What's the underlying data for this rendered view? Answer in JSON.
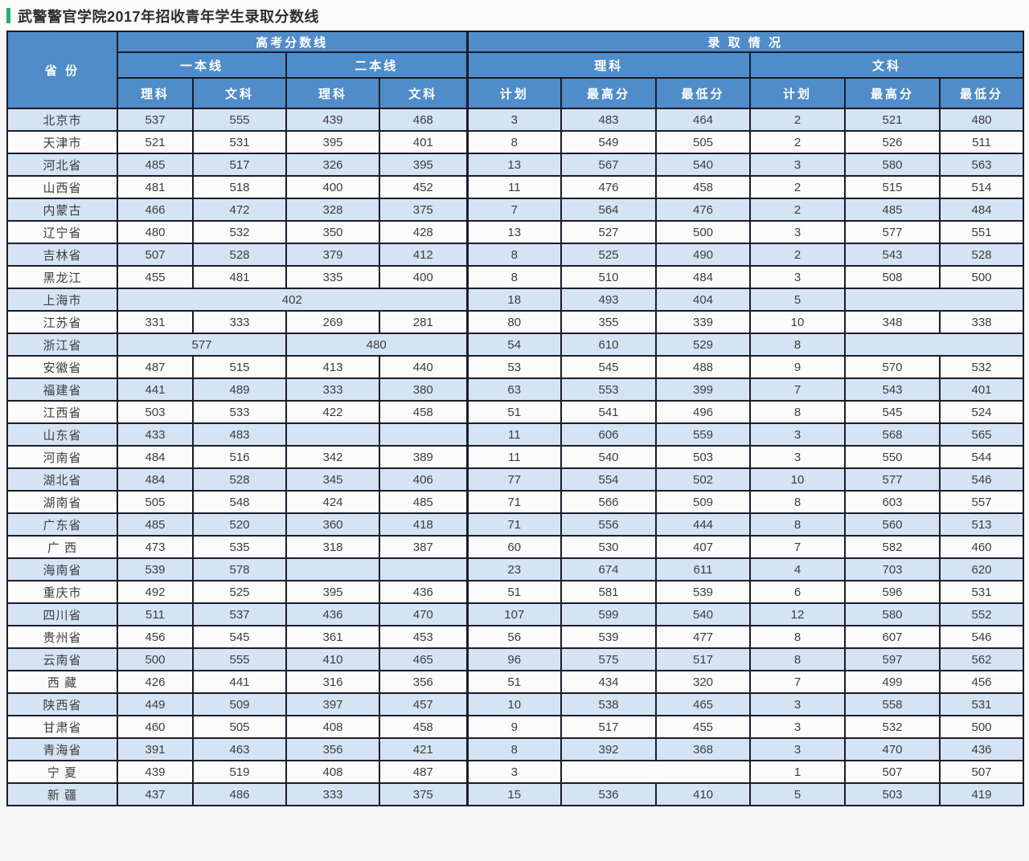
{
  "page": {
    "title": "武警警官学院2017年招收青年学生录取分数线"
  },
  "colors": {
    "accent_green": "#27b06a",
    "header_bg": "#4f8cc9",
    "row_alt_bg": "#d4e4f4",
    "row_bg": "#fbfbfb",
    "border": "#1b1b29"
  },
  "table": {
    "header": {
      "province": "省  份",
      "gaokao_lines": "高考分数线",
      "admission": "录 取 情 况",
      "first_tier": "一本线",
      "second_tier": "二本线",
      "science": "理科",
      "arts": "文科",
      "plan": "计划",
      "max_score": "最高分",
      "min_score": "最低分"
    },
    "rows": [
      {
        "province": "北京市",
        "cells": [
          "537",
          "555",
          "439",
          "468",
          "3",
          "483",
          "464",
          "2",
          "521",
          "480"
        ]
      },
      {
        "province": "天津市",
        "cells": [
          "521",
          "531",
          "395",
          "401",
          "8",
          "549",
          "505",
          "2",
          "526",
          "511"
        ]
      },
      {
        "province": "河北省",
        "cells": [
          "485",
          "517",
          "326",
          "395",
          "13",
          "567",
          "540",
          "3",
          "580",
          "563"
        ]
      },
      {
        "province": "山西省",
        "cells": [
          "481",
          "518",
          "400",
          "452",
          "11",
          "476",
          "458",
          "2",
          "515",
          "514"
        ]
      },
      {
        "province": "内蒙古",
        "cells": [
          "466",
          "472",
          "328",
          "375",
          "7",
          "564",
          "476",
          "2",
          "485",
          "484"
        ]
      },
      {
        "province": "辽宁省",
        "cells": [
          "480",
          "532",
          "350",
          "428",
          "13",
          "527",
          "500",
          "3",
          "577",
          "551"
        ]
      },
      {
        "province": "吉林省",
        "cells": [
          "507",
          "528",
          "379",
          "412",
          "8",
          "525",
          "490",
          "2",
          "543",
          "528"
        ]
      },
      {
        "province": "黑龙江",
        "cells": [
          "455",
          "481",
          "335",
          "400",
          "8",
          "510",
          "484",
          "3",
          "508",
          "500"
        ]
      },
      {
        "province": "上海市",
        "cells": [
          {
            "t": "402",
            "s": 4
          },
          "18",
          "493",
          "404",
          "5",
          {
            "t": "",
            "s": 2
          }
        ]
      },
      {
        "province": "江苏省",
        "cells": [
          "331",
          "333",
          "269",
          "281",
          "80",
          "355",
          "339",
          "10",
          "348",
          "338"
        ]
      },
      {
        "province": "浙江省",
        "cells": [
          {
            "t": "577",
            "s": 2
          },
          {
            "t": "480",
            "s": 2
          },
          "54",
          "610",
          "529",
          "8",
          {
            "t": "",
            "s": 2
          }
        ]
      },
      {
        "province": "安徽省",
        "cells": [
          "487",
          "515",
          "413",
          "440",
          "53",
          "545",
          "488",
          "9",
          "570",
          "532"
        ]
      },
      {
        "province": "福建省",
        "cells": [
          "441",
          "489",
          "333",
          "380",
          "63",
          "553",
          "399",
          "7",
          "543",
          "401"
        ]
      },
      {
        "province": "江西省",
        "cells": [
          "503",
          "533",
          "422",
          "458",
          "51",
          "541",
          "496",
          "8",
          "545",
          "524"
        ]
      },
      {
        "province": "山东省",
        "cells": [
          "433",
          "483",
          "",
          "",
          "11",
          "606",
          "559",
          "3",
          "568",
          "565"
        ]
      },
      {
        "province": "河南省",
        "cells": [
          "484",
          "516",
          "342",
          "389",
          "11",
          "540",
          "503",
          "3",
          "550",
          "544"
        ]
      },
      {
        "province": "湖北省",
        "cells": [
          "484",
          "528",
          "345",
          "406",
          "77",
          "554",
          "502",
          "10",
          "577",
          "546"
        ]
      },
      {
        "province": "湖南省",
        "cells": [
          "505",
          "548",
          "424",
          "485",
          "71",
          "566",
          "509",
          "8",
          "603",
          "557"
        ]
      },
      {
        "province": "广东省",
        "cells": [
          "485",
          "520",
          "360",
          "418",
          "71",
          "556",
          "444",
          "8",
          "560",
          "513"
        ]
      },
      {
        "province": "广  西",
        "cells": [
          "473",
          "535",
          "318",
          "387",
          "60",
          "530",
          "407",
          "7",
          "582",
          "460"
        ]
      },
      {
        "province": "海南省",
        "cells": [
          "539",
          "578",
          "",
          "",
          "23",
          "674",
          "611",
          "4",
          "703",
          "620"
        ]
      },
      {
        "province": "重庆市",
        "cells": [
          "492",
          "525",
          "395",
          "436",
          "51",
          "581",
          "539",
          "6",
          "596",
          "531"
        ]
      },
      {
        "province": "四川省",
        "cells": [
          "511",
          "537",
          "436",
          "470",
          "107",
          "599",
          "540",
          "12",
          "580",
          "552"
        ]
      },
      {
        "province": "贵州省",
        "cells": [
          "456",
          "545",
          "361",
          "453",
          "56",
          "539",
          "477",
          "8",
          "607",
          "546"
        ]
      },
      {
        "province": "云南省",
        "cells": [
          "500",
          "555",
          "410",
          "465",
          "96",
          "575",
          "517",
          "8",
          "597",
          "562"
        ]
      },
      {
        "province": "西  藏",
        "cells": [
          "426",
          "441",
          "316",
          "356",
          "51",
          "434",
          "320",
          "7",
          "499",
          "456"
        ]
      },
      {
        "province": "陕西省",
        "cells": [
          "449",
          "509",
          "397",
          "457",
          "10",
          "538",
          "465",
          "3",
          "558",
          "531"
        ]
      },
      {
        "province": "甘肃省",
        "cells": [
          "460",
          "505",
          "408",
          "458",
          "9",
          "517",
          "455",
          "3",
          "532",
          "500"
        ]
      },
      {
        "province": "青海省",
        "cells": [
          "391",
          "463",
          "356",
          "421",
          "8",
          "392",
          "368",
          "3",
          "470",
          "436"
        ]
      },
      {
        "province": "宁  夏",
        "cells": [
          "439",
          "519",
          "408",
          "487",
          "3",
          {
            "t": "",
            "s": 2
          },
          "1",
          "507",
          "507"
        ]
      },
      {
        "province": "新  疆",
        "cells": [
          "437",
          "486",
          "333",
          "375",
          "15",
          "536",
          "410",
          "5",
          "503",
          "419"
        ]
      }
    ]
  }
}
